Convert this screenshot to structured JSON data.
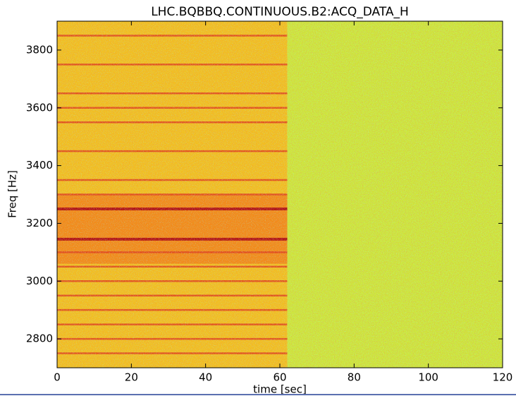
{
  "chart_data": {
    "type": "spectrogram",
    "title": "LHC.BQBBQ.CONTINUOUS.B2:ACQ_DATA_H",
    "xlabel": "time [sec]",
    "ylabel": "Freq [Hz]",
    "xlim": [
      0,
      120
    ],
    "ylim": [
      2700,
      3900
    ],
    "xticks": [
      0,
      20,
      40,
      60,
      80,
      100,
      120
    ],
    "yticks": [
      2800,
      3000,
      3200,
      3400,
      3600,
      3800
    ],
    "regions": [
      {
        "x": [
          0,
          62
        ],
        "y": [
          2700,
          3900
        ],
        "color": "#f2c21e"
      },
      {
        "x": [
          62,
          120
        ],
        "y": [
          2700,
          3900
        ],
        "color": "#cdea3a"
      },
      {
        "x": [
          0,
          62
        ],
        "y": [
          3060,
          3300
        ],
        "color": "#f27a14"
      }
    ],
    "line_span": [
      0,
      62
    ],
    "harmonics": [
      2750,
      2800,
      2850,
      2900,
      2950,
      3000,
      3050,
      3100,
      3300,
      3350,
      3450,
      3550,
      3600,
      3650,
      3750,
      3850
    ],
    "harmonic_color": "#e0401a",
    "strong_harmonics": [
      3145,
      3250
    ],
    "strong_color": "#b01010"
  }
}
